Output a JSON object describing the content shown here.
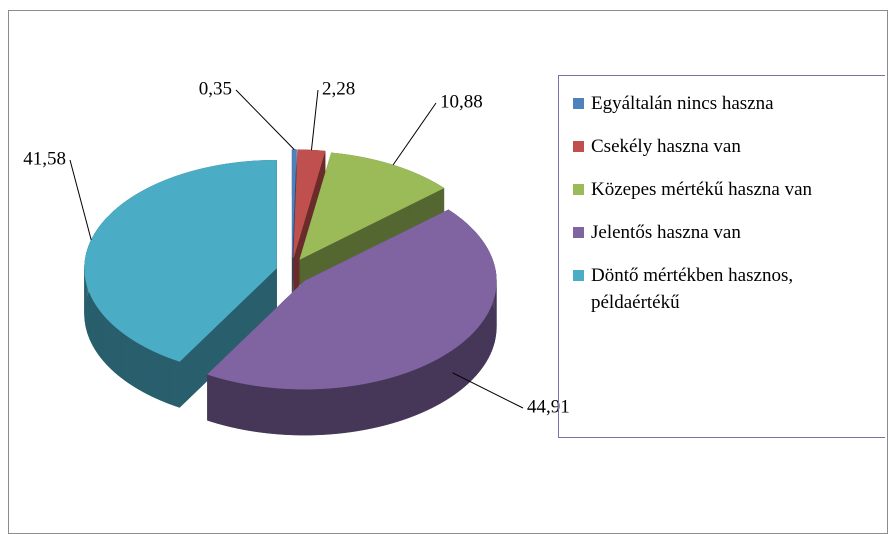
{
  "chart_data": {
    "type": "pie",
    "categories": [
      "Egyáltalán nincs haszna",
      "Csekély haszna van",
      "Közepes mértékű haszna van",
      "Jelentős haszna van",
      "Döntő mértékben hasznos, példaértékű"
    ],
    "values": [
      0.35,
      2.28,
      10.88,
      44.91,
      41.58
    ],
    "value_labels": [
      "0,35",
      "2,28",
      "10,88",
      "44,91",
      "41,58"
    ],
    "colors": [
      "#4f81bd",
      "#c0504d",
      "#9bbb59",
      "#8064a2",
      "#4bacc6"
    ],
    "legend": "right"
  }
}
